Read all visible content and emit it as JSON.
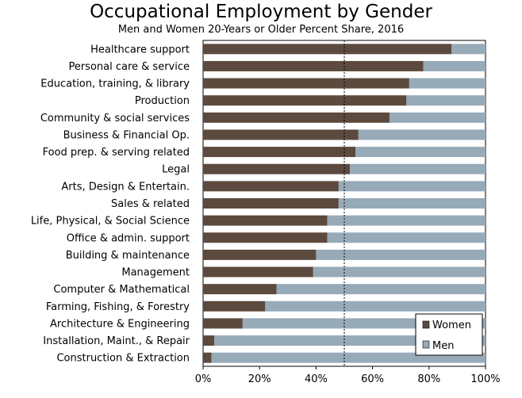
{
  "chart_data": {
    "type": "bar",
    "orientation": "horizontal",
    "stacked": true,
    "title": "Occupational Employment by Gender",
    "subtitle": "Men and Women 20-Years or Older Percent Share, 2016",
    "categories": [
      "Healthcare support",
      "Personal care & service",
      "Education, training, & library",
      "Production",
      "Community & social services",
      "Business & Financial Op.",
      "Food prep. & serving related",
      "Legal",
      "Arts, Design & Entertain.",
      "Sales & related",
      "Life, Physical, & Social Science",
      "Office & admin. support",
      "Building & maintenance",
      "Management",
      "Computer & Mathematical",
      "Farming, Fishing, & Forestry",
      "Architecture & Engineering",
      "Installation, Maint., & Repair",
      "Construction & Extraction"
    ],
    "series": [
      {
        "name": "Women",
        "color": "#5c4a3f",
        "values": [
          88,
          78,
          73,
          72,
          66,
          55,
          54,
          52,
          48,
          48,
          44,
          44,
          40,
          39,
          26,
          22,
          14,
          4,
          3
        ]
      },
      {
        "name": "Men",
        "color": "#97aab8",
        "values": [
          12,
          22,
          27,
          28,
          34,
          45,
          46,
          48,
          52,
          52,
          56,
          56,
          60,
          61,
          74,
          78,
          86,
          96,
          97
        ]
      }
    ],
    "xticks": [
      "0%",
      "20%",
      "40%",
      "60%",
      "80%",
      "100%"
    ],
    "xlim": [
      0,
      100
    ],
    "reference_line": 50,
    "grid": false,
    "legend_position": "bottom-right"
  }
}
